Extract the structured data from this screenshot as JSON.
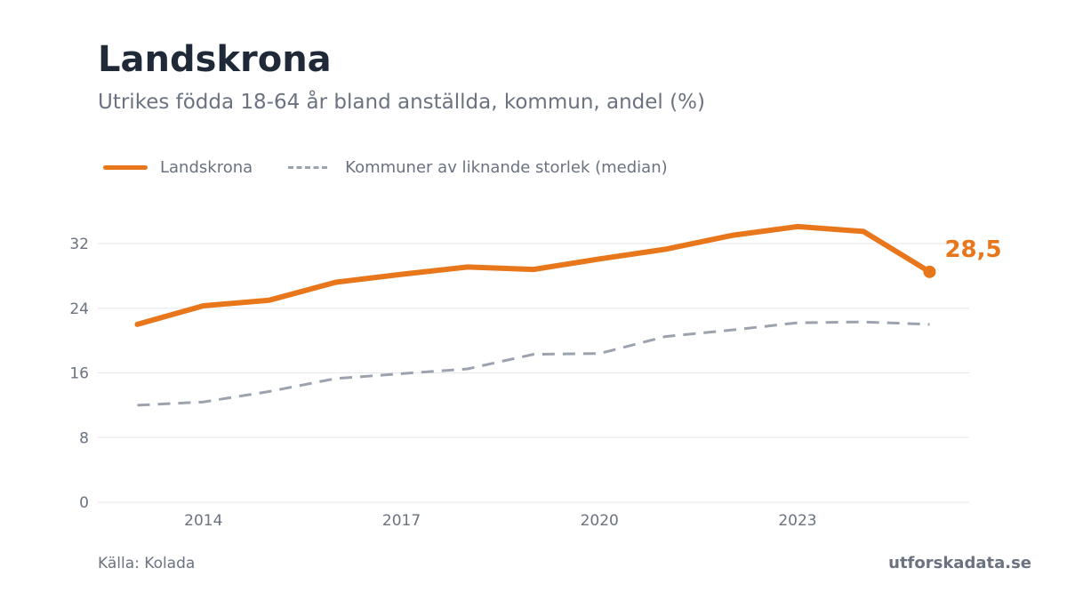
{
  "header": {
    "title": "Landskrona",
    "subtitle": "Utrikes födda 18-64 år bland anställda, kommun, andel (%)"
  },
  "legend": {
    "primary": "Landskrona",
    "comparison": "Kommuner av liknande storlek (median)"
  },
  "footer": {
    "source": "Källa: Kolada",
    "brand": "utforskadata.se"
  },
  "colors": {
    "primary": "#e8761a",
    "comparison": "#9ca3af",
    "grid": "#e5e7eb"
  },
  "chart_data": {
    "type": "line",
    "x": [
      2013,
      2014,
      2015,
      2016,
      2017,
      2018,
      2019,
      2020,
      2021,
      2022,
      2023,
      2024,
      2025
    ],
    "xticks": [
      2014,
      2017,
      2020,
      2023
    ],
    "yticks": [
      0,
      8,
      16,
      24,
      32
    ],
    "xlim": [
      2012.4,
      2025.6
    ],
    "ylim": [
      0,
      32
    ],
    "end_label": "28,5",
    "grid": true,
    "legend_position": "top-left",
    "series": [
      {
        "name": "Landskrona",
        "style": "solid",
        "values": [
          22.0,
          24.3,
          25.0,
          27.2,
          28.2,
          29.1,
          28.8,
          30.1,
          31.3,
          33.0,
          34.1,
          33.5,
          28.5
        ]
      },
      {
        "name": "Kommuner av liknande storlek (median)",
        "style": "dashed",
        "values": [
          12.0,
          12.4,
          13.7,
          15.3,
          15.9,
          16.5,
          18.3,
          18.4,
          20.5,
          21.3,
          22.2,
          22.3,
          22.0
        ]
      }
    ]
  }
}
